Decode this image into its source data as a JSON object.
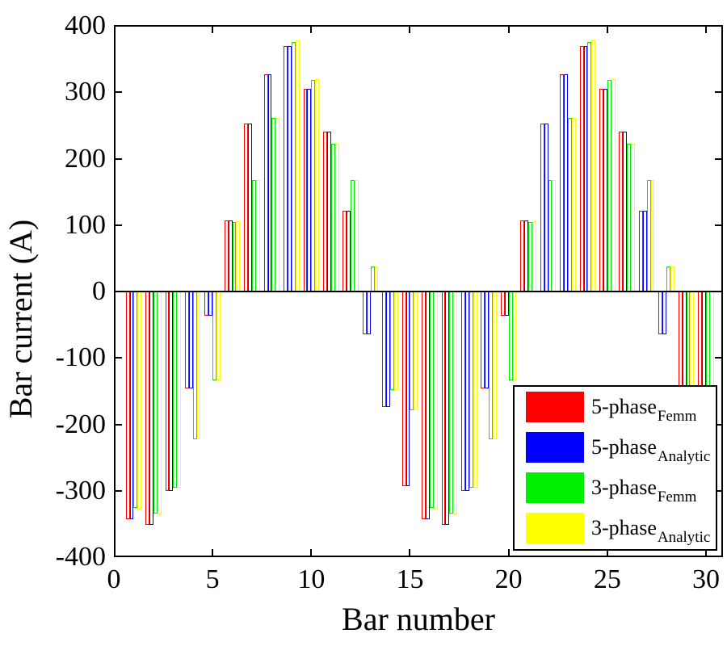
{
  "figure": {
    "background": "#ffffff",
    "axis_color": "#000000"
  },
  "chart_data": {
    "type": "bar",
    "title": "",
    "xlabel": "Bar number",
    "ylabel": "Bar current (A)",
    "bar_style": "outline-white-fill",
    "grid": false,
    "legend_position": "lower-right",
    "xlim": [
      0,
      30.86
    ],
    "ylim": [
      -400,
      400
    ],
    "x_ticks": [
      0,
      5,
      10,
      15,
      20,
      25,
      30
    ],
    "y_ticks": [
      400,
      300,
      200,
      100,
      0,
      -100,
      -200,
      -300,
      -400
    ],
    "x": [
      1,
      2,
      3,
      4,
      5,
      6,
      7,
      8,
      9,
      10,
      11,
      12,
      13,
      14,
      15,
      16,
      17,
      18,
      19,
      20,
      21,
      22,
      23,
      24,
      25,
      26,
      27,
      28,
      29,
      30
    ],
    "series": [
      {
        "name": "5-phase-femm",
        "label_main": "5-phase",
        "label_sub": "Femm",
        "color": "#ff0000",
        "values": [
          -343,
          -351,
          -300,
          -146,
          -36,
          107,
          253,
          327,
          369,
          305,
          241,
          121,
          -65,
          -174,
          -293,
          -343,
          -351,
          -300,
          -146,
          -36,
          107,
          253,
          327,
          369,
          305,
          241,
          121,
          -65,
          -174,
          -293
        ]
      },
      {
        "name": "5-phase-analytic",
        "label_main": "5-phase",
        "label_sub": "Analytic",
        "color": "#0000ff",
        "values": [
          -343,
          -351,
          -300,
          -146,
          -36,
          107,
          253,
          327,
          369,
          305,
          241,
          121,
          -65,
          -174,
          -293,
          -343,
          -351,
          -300,
          -146,
          -36,
          107,
          253,
          327,
          369,
          305,
          241,
          121,
          -65,
          -174,
          -293
        ]
      },
      {
        "name": "3-phase-femm",
        "label_main": "3-phase",
        "label_sub": "Femm",
        "color": "#00ee00",
        "values": [
          -326,
          -334,
          -295,
          -223,
          -134,
          105,
          168,
          262,
          376,
          318,
          222,
          168,
          38,
          -148,
          -179,
          -326,
          -334,
          -295,
          -223,
          -134,
          105,
          168,
          262,
          376,
          318,
          222,
          168,
          38,
          -148,
          -179
        ]
      },
      {
        "name": "3-phase-analytic",
        "label_main": "3-phase",
        "label_sub": "Analytic",
        "color": "#ffff00",
        "values": [
          -328,
          -336,
          -295,
          -223,
          -134,
          106,
          168,
          262,
          378,
          320,
          223,
          168,
          38,
          -148,
          -179,
          -328,
          -336,
          -295,
          -223,
          -134,
          106,
          168,
          262,
          378,
          320,
          223,
          168,
          38,
          -148,
          -179
        ]
      }
    ]
  }
}
